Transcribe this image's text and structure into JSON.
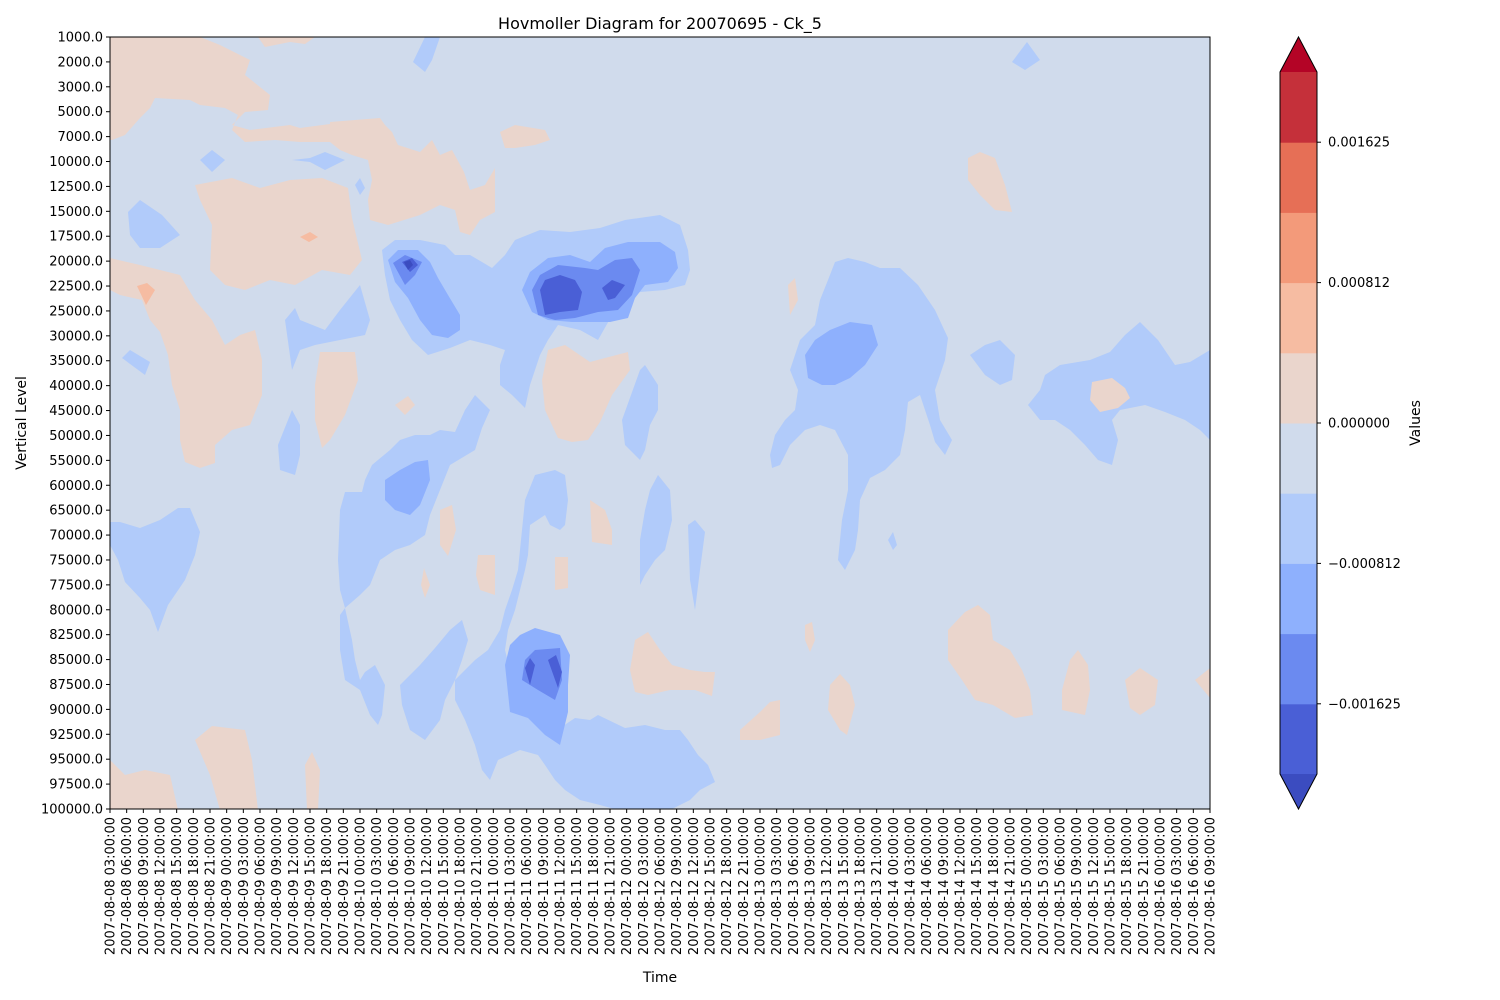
{
  "chart_data": {
    "type": "heatmap",
    "subtype": "filled-contour",
    "title": "Hovmoller Diagram for 20070695 - Ck_5",
    "xlabel": "Time",
    "ylabel": "Vertical Level",
    "colorbar_label": "Values",
    "colormap": "coolwarm",
    "x_ticks": [
      "2007-08-08 03:00:00",
      "2007-08-08 06:00:00",
      "2007-08-08 09:00:00",
      "2007-08-08 12:00:00",
      "2007-08-08 15:00:00",
      "2007-08-08 18:00:00",
      "2007-08-08 21:00:00",
      "2007-08-09 00:00:00",
      "2007-08-09 03:00:00",
      "2007-08-09 06:00:00",
      "2007-08-09 09:00:00",
      "2007-08-09 12:00:00",
      "2007-08-09 15:00:00",
      "2007-08-09 18:00:00",
      "2007-08-09 21:00:00",
      "2007-08-10 00:00:00",
      "2007-08-10 03:00:00",
      "2007-08-10 06:00:00",
      "2007-08-10 09:00:00",
      "2007-08-10 12:00:00",
      "2007-08-10 15:00:00",
      "2007-08-10 18:00:00",
      "2007-08-10 21:00:00",
      "2007-08-11 00:00:00",
      "2007-08-11 03:00:00",
      "2007-08-11 06:00:00",
      "2007-08-11 09:00:00",
      "2007-08-11 12:00:00",
      "2007-08-11 15:00:00",
      "2007-08-11 18:00:00",
      "2007-08-11 21:00:00",
      "2007-08-12 00:00:00",
      "2007-08-12 03:00:00",
      "2007-08-12 06:00:00",
      "2007-08-12 09:00:00",
      "2007-08-12 12:00:00",
      "2007-08-12 15:00:00",
      "2007-08-12 18:00:00",
      "2007-08-12 21:00:00",
      "2007-08-13 00:00:00",
      "2007-08-13 03:00:00",
      "2007-08-13 06:00:00",
      "2007-08-13 09:00:00",
      "2007-08-13 12:00:00",
      "2007-08-13 15:00:00",
      "2007-08-13 18:00:00",
      "2007-08-13 21:00:00",
      "2007-08-14 00:00:00",
      "2007-08-14 03:00:00",
      "2007-08-14 06:00:00",
      "2007-08-14 09:00:00",
      "2007-08-14 12:00:00",
      "2007-08-14 15:00:00",
      "2007-08-14 18:00:00",
      "2007-08-14 21:00:00",
      "2007-08-15 00:00:00",
      "2007-08-15 03:00:00",
      "2007-08-15 06:00:00",
      "2007-08-15 09:00:00",
      "2007-08-15 12:00:00",
      "2007-08-15 15:00:00",
      "2007-08-15 18:00:00",
      "2007-08-15 21:00:00",
      "2007-08-16 00:00:00",
      "2007-08-16 03:00:00",
      "2007-08-16 06:00:00",
      "2007-08-16 09:00:00"
    ],
    "y_ticks": [
      "1000.0",
      "2000.0",
      "3000.0",
      "5000.0",
      "7000.0",
      "10000.0",
      "12500.0",
      "15000.0",
      "17500.0",
      "20000.0",
      "22500.0",
      "25000.0",
      "30000.0",
      "35000.0",
      "40000.0",
      "45000.0",
      "50000.0",
      "55000.0",
      "60000.0",
      "65000.0",
      "70000.0",
      "75000.0",
      "77500.0",
      "80000.0",
      "82500.0",
      "85000.0",
      "87500.0",
      "90000.0",
      "92500.0",
      "95000.0",
      "97500.0",
      "100000.0"
    ],
    "y_axis_inverted": true,
    "colorbar_ticks": [
      "0.001625",
      "0.000812",
      "0.000000",
      "−0.000812",
      "−0.001625"
    ],
    "levels": [
      -0.00203,
      -0.001625,
      -0.00122,
      -0.000812,
      -0.000406,
      0.0,
      0.000406,
      0.000812,
      0.00122,
      0.001625,
      0.00203
    ],
    "colors": {
      "extend_min": "#3b4cc0",
      "bands": [
        "#4a5fd6",
        "#6b8af0",
        "#8eb0fd",
        "#b1cbfa",
        "#d0dbec",
        "#ead5cc",
        "#f6bca2",
        "#f39a7a",
        "#e66f56",
        "#c5303a"
      ],
      "extend_max": "#b40426",
      "background": "#d0dbec"
    },
    "regions": [
      {
        "level": "neg1",
        "t_range": [
          "2007-08-08 03:00:00",
          "2007-08-08 12:00:00"
        ],
        "z_range": [
          "65000.0",
          "82500.0"
        ],
        "color": "#b1cbfa"
      },
      {
        "level": "neg1",
        "t_range": [
          "2007-08-08 03:00:00",
          "2007-08-08 09:00:00"
        ],
        "z_range": [
          "15000.0",
          "20000.0"
        ],
        "color": "#b1cbfa"
      },
      {
        "level": "pos1",
        "t_range": [
          "2007-08-08 03:00:00",
          "2007-08-08 12:00:00"
        ],
        "z_range": [
          "1000.0",
          "7000.0"
        ],
        "color": "#ead5cc"
      },
      {
        "level": "pos1",
        "t_range": [
          "2007-08-08 15:00:00",
          "2007-08-09 03:00:00"
        ],
        "z_range": [
          "20000.0",
          "55000.0"
        ],
        "color": "#ead5cc"
      },
      {
        "level": "neg1",
        "t_range": [
          "2007-08-10 03:00:00",
          "2007-08-11 12:00:00"
        ],
        "z_range": [
          "20000.0",
          "35000.0"
        ],
        "color": "#b1cbfa"
      },
      {
        "level": "neg3",
        "t_range": [
          "2007-08-11 09:00:00",
          "2007-08-11 18:00:00"
        ],
        "z_range": [
          "20000.0",
          "25000.0"
        ],
        "color": "#4a5fd6"
      },
      {
        "level": "neg1",
        "t_range": [
          "2007-08-13 06:00:00",
          "2007-08-14 03:00:00"
        ],
        "z_range": [
          "20000.0",
          "65000.0"
        ],
        "color": "#b1cbfa"
      },
      {
        "level": "neg2",
        "t_range": [
          "2007-08-13 06:00:00",
          "2007-08-13 15:00:00"
        ],
        "z_range": [
          "30000.0",
          "40000.0"
        ],
        "color": "#8eb0fd"
      },
      {
        "level": "neg1",
        "t_range": [
          "2007-08-11 03:00:00",
          "2007-08-12 09:00:00"
        ],
        "z_range": [
          "77500.0",
          "100000.0"
        ],
        "color": "#b1cbfa"
      },
      {
        "level": "pos1",
        "t_range": [
          "2007-08-14 15:00:00",
          "2007-08-15 00:00:00"
        ],
        "z_range": [
          "80000.0",
          "90000.0"
        ],
        "color": "#ead5cc"
      }
    ]
  }
}
